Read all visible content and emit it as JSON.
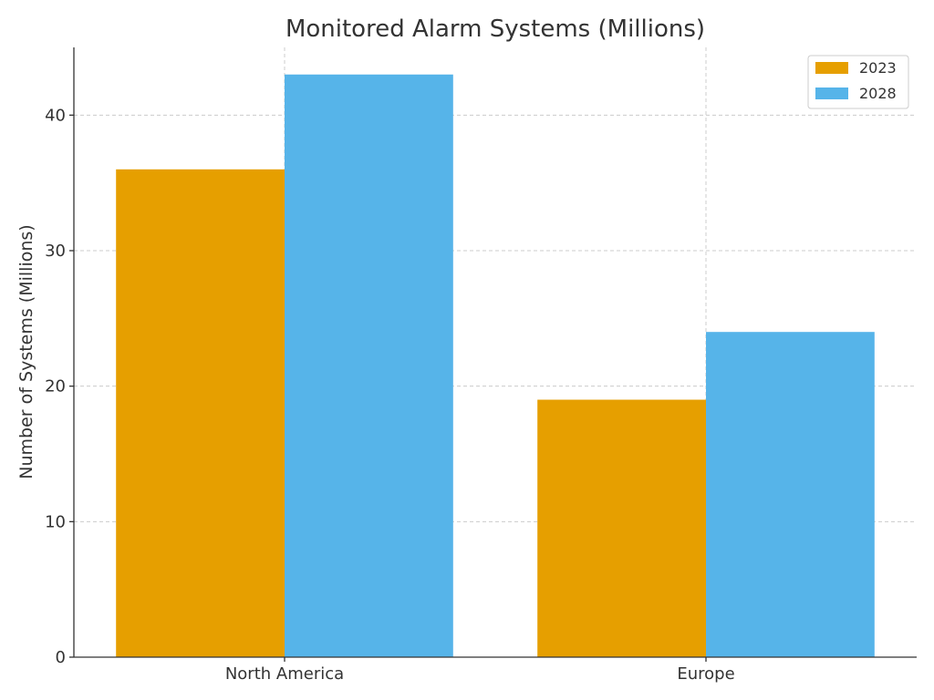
{
  "chart_data": {
    "type": "bar",
    "title": "Monitored Alarm Systems (Millions)",
    "xlabel": "",
    "ylabel": "Number of Systems (Millions)",
    "categories": [
      "North America",
      "Europe"
    ],
    "series": [
      {
        "name": "2023",
        "values": [
          36,
          19
        ],
        "color": "#E69F00"
      },
      {
        "name": "2028",
        "values": [
          43,
          24
        ],
        "color": "#56B4E9"
      }
    ],
    "ylim": [
      0,
      45
    ],
    "yticks": [
      0,
      10,
      20,
      30,
      40
    ],
    "grid": true,
    "legend_position": "top-right"
  }
}
